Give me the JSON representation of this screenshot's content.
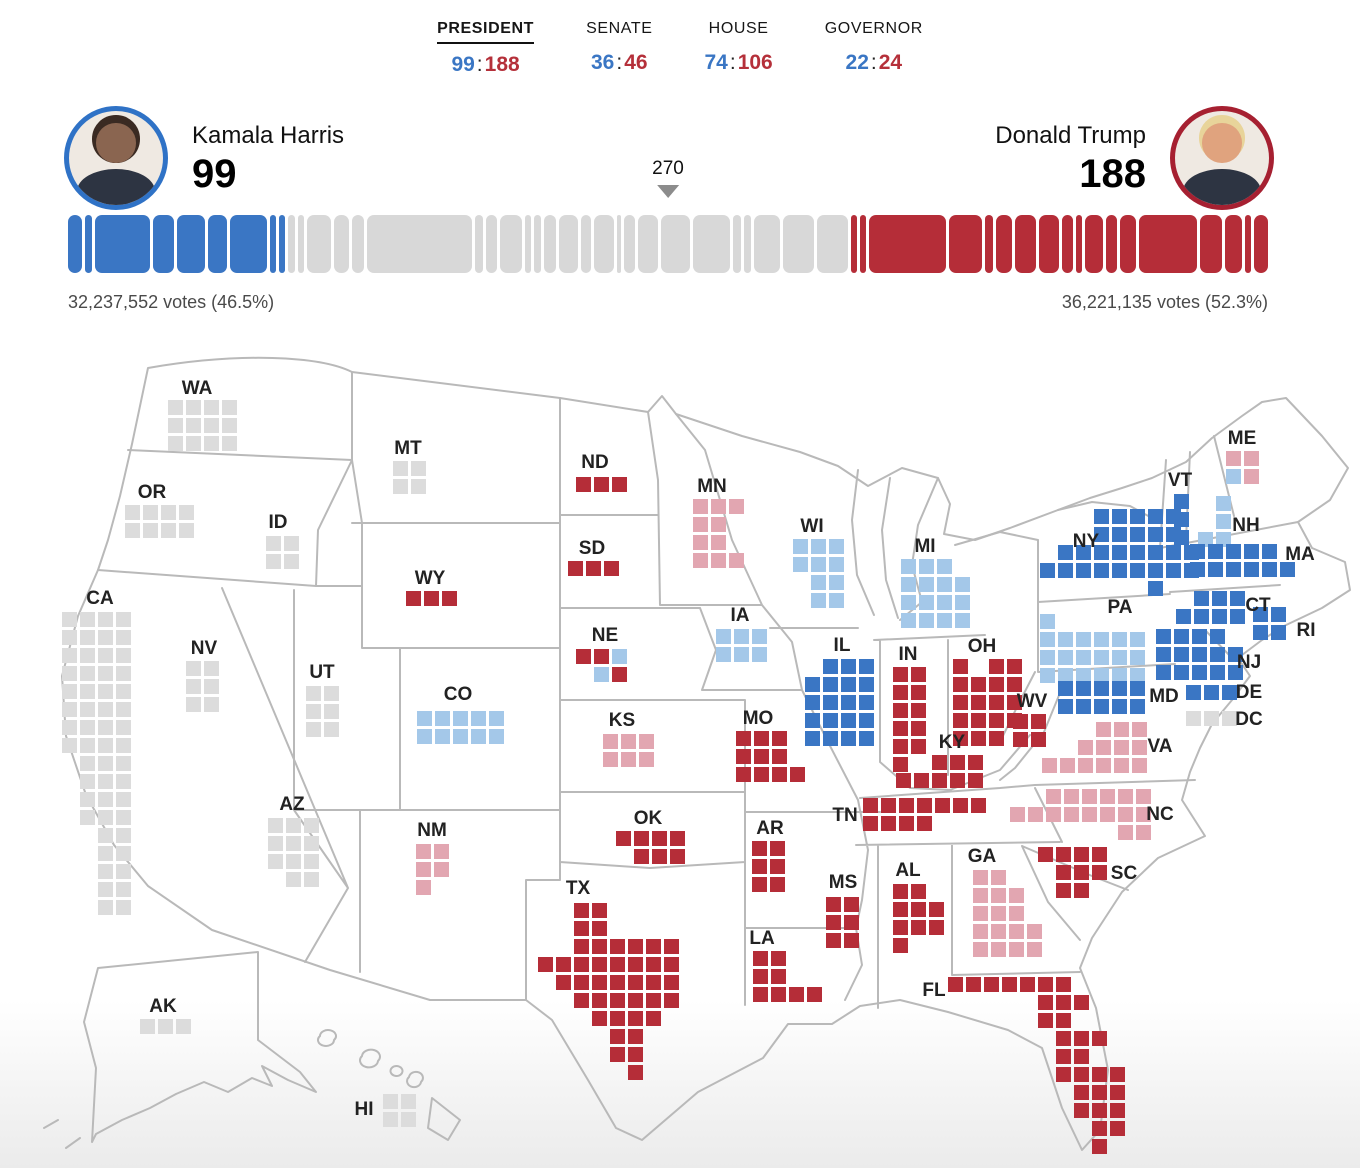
{
  "nav": {
    "tabs": [
      {
        "label": "PRESIDENT",
        "dem": "99",
        "rep": "188",
        "active": true
      },
      {
        "label": "SENATE",
        "dem": "36",
        "rep": "46",
        "active": false
      },
      {
        "label": "HOUSE",
        "dem": "74",
        "rep": "106",
        "active": false
      },
      {
        "label": "GOVERNOR",
        "dem": "22",
        "rep": "24",
        "active": false
      }
    ]
  },
  "summary": {
    "harris": {
      "name": "Kamala Harris",
      "ev": "99",
      "votes_label": "32,237,552 votes (46.5%)"
    },
    "trump": {
      "name": "Donald Trump",
      "ev": "188",
      "votes_label": "36,221,135 votes (52.3%)"
    },
    "threshold_label": "270",
    "total_ev": 538
  },
  "bar": {
    "harris_segments": [
      7,
      4,
      28,
      11,
      14,
      10,
      19,
      3,
      3
    ],
    "uncalled_segments": [
      4,
      3,
      12,
      8,
      6,
      54,
      4,
      6,
      11,
      3,
      4,
      6,
      10,
      5,
      10,
      2,
      6,
      10,
      15,
      19,
      4,
      4,
      13,
      16,
      16
    ],
    "trump_segments": [
      3,
      3,
      40,
      17,
      4,
      8,
      11,
      10,
      6,
      3,
      9,
      6,
      8,
      30,
      11,
      9,
      3,
      7
    ]
  },
  "colors": {
    "dem_solid": "#3a76c4",
    "dem_leading": "#a4c8e9",
    "gop_solid": "#b52d38",
    "gop_leading": "#e2a6b1",
    "uncalled": "#dcdcdc",
    "bar_uncalled": "#d8d8d8",
    "harris_ring": "#2f72c6",
    "trump_ring": "#a62031"
  },
  "map": {
    "states": [
      {
        "abbr": "WA",
        "ev": 12,
        "pattern": [
          "GGGG",
          "GGGG",
          "GGGG"
        ]
      },
      {
        "abbr": "OR",
        "ev": 8,
        "pattern": [
          "GGGG",
          "GGGG"
        ]
      },
      {
        "abbr": "CA",
        "ev": 54,
        "pattern": [
          "GGGG",
          "GGGG",
          "GGGG",
          "GGGG",
          "GGGG",
          "GGGG",
          "GGGG",
          "GGGG",
          ".GGG",
          ".GGG",
          ".GGG",
          ".GGG",
          "..GG",
          "..GG",
          "..GG",
          "..GG",
          "..GG"
        ]
      },
      {
        "abbr": "NV",
        "ev": 6,
        "pattern": [
          "GG",
          "GG",
          "GG"
        ]
      },
      {
        "abbr": "ID",
        "ev": 4,
        "pattern": [
          "GG",
          "GG"
        ]
      },
      {
        "abbr": "MT",
        "ev": 4,
        "pattern": [
          "GG",
          "GG"
        ]
      },
      {
        "abbr": "WY",
        "ev": 3,
        "pattern": [
          "RRR"
        ]
      },
      {
        "abbr": "UT",
        "ev": 6,
        "pattern": [
          "GG",
          "GG",
          "GG"
        ]
      },
      {
        "abbr": "CO",
        "ev": 10,
        "pattern": [
          "bbbbb",
          "bbbbb"
        ]
      },
      {
        "abbr": "AZ",
        "ev": 11,
        "pattern": [
          "GGG",
          "GGG",
          "GGG",
          ".GG"
        ]
      },
      {
        "abbr": "NM",
        "ev": 5,
        "pattern": [
          "rr",
          "rr",
          "r."
        ]
      },
      {
        "abbr": "ND",
        "ev": 3,
        "pattern": [
          "RRR"
        ]
      },
      {
        "abbr": "SD",
        "ev": 3,
        "pattern": [
          "RRR"
        ]
      },
      {
        "abbr": "NE",
        "ev": 5,
        "pattern": [
          "RRb",
          ".bR"
        ]
      },
      {
        "abbr": "KS",
        "ev": 6,
        "pattern": [
          "rrr",
          "rrr"
        ]
      },
      {
        "abbr": "OK",
        "ev": 7,
        "pattern": [
          "RRRR",
          ".RRR"
        ]
      },
      {
        "abbr": "TX",
        "ev": 40,
        "pattern": [
          "..RR....",
          "..RR....",
          "..RRRRRR",
          "RRRRRRRR",
          ".RRRRRRR",
          "..RRRRRR",
          "...RRRR.",
          "....RR..",
          "....RR..",
          ".....R.."
        ]
      },
      {
        "abbr": "MN",
        "ev": 10,
        "pattern": [
          "rrr",
          "rr.",
          "rr.",
          "rrr"
        ]
      },
      {
        "abbr": "IA",
        "ev": 6,
        "pattern": [
          "bbb",
          "bbb"
        ]
      },
      {
        "abbr": "MO",
        "ev": 10,
        "pattern": [
          "RRR.",
          "RRR.",
          "RRRR"
        ]
      },
      {
        "abbr": "AR",
        "ev": 6,
        "pattern": [
          "RR",
          "RR",
          "RR"
        ]
      },
      {
        "abbr": "LA",
        "ev": 8,
        "pattern": [
          "RR..",
          "RR..",
          "RRRR"
        ]
      },
      {
        "abbr": "WI",
        "ev": 10,
        "pattern": [
          "bbb",
          "bbb",
          ".bb",
          ".bb"
        ]
      },
      {
        "abbr": "IL",
        "ev": 19,
        "pattern": [
          ".BBB",
          "BBBB",
          "BBBB",
          "BBBB",
          "BBBB"
        ]
      },
      {
        "abbr": "IN",
        "ev": 11,
        "pattern": [
          "RR",
          "RR",
          "RR",
          "RR",
          "RR",
          "R."
        ]
      },
      {
        "abbr": "OH",
        "ev": 17,
        "pattern": [
          "R.RR",
          "RRRR",
          "RRRR",
          "RRRR",
          "RRR."
        ]
      },
      {
        "abbr": "KY",
        "ev": 8,
        "pattern": [
          "..RRR",
          "RRRRR"
        ]
      },
      {
        "abbr": "WV",
        "ev": 4,
        "pattern": [
          "RR",
          "RR"
        ]
      },
      {
        "abbr": "MI",
        "ev": 15,
        "pattern": [
          "bbb.",
          "bbbb",
          "bbbb",
          "bbbb"
        ]
      },
      {
        "abbr": "TN",
        "ev": 11,
        "pattern": [
          "RRRRRRR",
          "RRRR..."
        ]
      },
      {
        "abbr": "MS",
        "ev": 6,
        "pattern": [
          "RR",
          "RR",
          "RR"
        ]
      },
      {
        "abbr": "AL",
        "ev": 9,
        "pattern": [
          "RR.",
          "RRR",
          "RRR",
          "R.."
        ]
      },
      {
        "abbr": "GA",
        "ev": 16,
        "pattern": [
          "rr..",
          "rrr.",
          "rrr.",
          "rrrr",
          "rrrr"
        ]
      },
      {
        "abbr": "SC",
        "ev": 9,
        "pattern": [
          "RRRR",
          ".RRR",
          ".RR."
        ]
      },
      {
        "abbr": "FL",
        "ev": 30,
        "pattern": [
          "RRRRRRR...",
          ".....RRR..",
          ".....RR...",
          "......RRR.",
          "......RR..",
          "......RRRR",
          ".......RRR",
          ".......RRR",
          "........RR",
          "........R."
        ]
      },
      {
        "abbr": "VA",
        "ev": 13,
        "pattern": [
          "...rrr",
          "..rrrr",
          "rrrrrr"
        ]
      },
      {
        "abbr": "NC",
        "ev": 16,
        "pattern": [
          "..rrrrrr",
          "rrrrrrrr",
          "......rr"
        ]
      },
      {
        "abbr": "NY",
        "ev": 28,
        "pattern": [
          "...BBBBB.",
          "...BBBBB.",
          ".BBBBBBBB",
          "BBBBBBBBB",
          "......B.."
        ]
      },
      {
        "abbr": "PA",
        "ev": 19,
        "pattern": [
          "b......",
          "bbbbbb.",
          "bbbbbb.",
          "bbbbbb."
        ]
      },
      {
        "abbr": "VT",
        "ev": 3,
        "pattern": [
          "B",
          "B",
          "B"
        ]
      },
      {
        "abbr": "NH",
        "ev": 4,
        "pattern": [
          ".b",
          ".b",
          "bb"
        ]
      },
      {
        "abbr": "ME",
        "ev": 4,
        "pattern": [
          "rr",
          "br"
        ]
      },
      {
        "abbr": "MA",
        "ev": 11,
        "pattern": [
          "BBBBB.",
          "BBBBBB"
        ]
      },
      {
        "abbr": "CT",
        "ev": 7,
        "pattern": [
          ".BBB",
          "BBBB"
        ]
      },
      {
        "abbr": "RI",
        "ev": 4,
        "pattern": [
          "BB",
          "BB"
        ]
      },
      {
        "abbr": "NJ",
        "ev": 14,
        "pattern": [
          "BBBB.",
          "BBBBB",
          "BBBBB"
        ]
      },
      {
        "abbr": "MD",
        "ev": 10,
        "pattern": [
          "BBBBB",
          "BBBBB"
        ]
      },
      {
        "abbr": "DE",
        "ev": 3,
        "pattern": [
          "BBB"
        ]
      },
      {
        "abbr": "DC",
        "ev": 3,
        "pattern": [
          "GGG"
        ]
      },
      {
        "abbr": "AK",
        "ev": 3,
        "pattern": [
          "GGG"
        ]
      },
      {
        "abbr": "HI",
        "ev": 4,
        "pattern": [
          "GG",
          "GG"
        ]
      }
    ]
  }
}
